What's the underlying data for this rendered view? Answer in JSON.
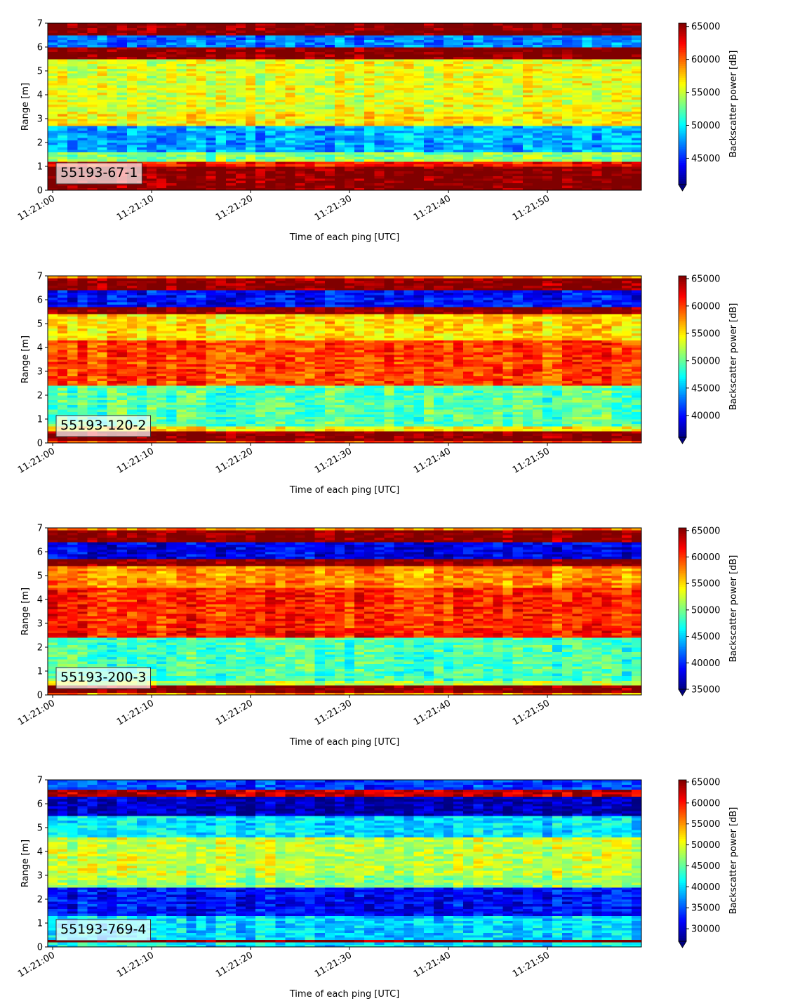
{
  "chart_data": [
    {
      "type": "heatmap",
      "panel_label": "55193-67-1",
      "xlabel": "Time of each ping [UTC]",
      "ylabel": "Range [m]",
      "x_ticks": [
        "11:21:00",
        "11:21:10",
        "11:21:20",
        "11:21:30",
        "11:21:40",
        "11:21:50"
      ],
      "x_range": [
        "11:20:59.5",
        "11:21:59.5"
      ],
      "ylim": [
        0,
        7
      ],
      "y_ticks": [
        0,
        1,
        2,
        3,
        4,
        5,
        6,
        7
      ],
      "colorbar": {
        "label": "Backscatter power [dB]",
        "colormap": "jet",
        "range": [
          41000,
          65500
        ],
        "ticks": [
          45000,
          50000,
          55000,
          60000,
          65000
        ],
        "extend": "min"
      },
      "range_profile": [
        {
          "range": [
            0.0,
            0.2
          ],
          "value": 65500
        },
        {
          "range": [
            0.2,
            1.0
          ],
          "value": 65500
        },
        {
          "range": [
            1.0,
            1.2
          ],
          "value": 62000
        },
        {
          "range": [
            1.2,
            1.6
          ],
          "value": 53500
        },
        {
          "range": [
            1.6,
            2.7
          ],
          "value": 48000
        },
        {
          "range": [
            2.7,
            3.3
          ],
          "value": 56500
        },
        {
          "range": [
            3.3,
            5.5
          ],
          "value": 55500
        },
        {
          "range": [
            5.5,
            6.0
          ],
          "value": 65500
        },
        {
          "range": [
            6.0,
            6.5
          ],
          "value": 47000
        },
        {
          "range": [
            6.5,
            7.0
          ],
          "value": 65500
        }
      ]
    },
    {
      "type": "heatmap",
      "panel_label": "55193-120-2",
      "xlabel": "Time of each ping [UTC]",
      "ylabel": "Range [m]",
      "x_ticks": [
        "11:21:00",
        "11:21:10",
        "11:21:20",
        "11:21:30",
        "11:21:40",
        "11:21:50"
      ],
      "x_range": [
        "11:20:59.5",
        "11:21:59.5"
      ],
      "ylim": [
        0,
        7
      ],
      "y_ticks": [
        0,
        1,
        2,
        3,
        4,
        5,
        6,
        7
      ],
      "colorbar": {
        "label": "Backscatter power [dB]",
        "colormap": "jet",
        "range": [
          36000,
          65500
        ],
        "ticks": [
          40000,
          45000,
          50000,
          55000,
          60000,
          65000
        ],
        "extend": "min"
      },
      "range_profile": [
        {
          "range": [
            0.0,
            0.1
          ],
          "value": 60000
        },
        {
          "range": [
            0.1,
            0.5
          ],
          "value": 65500
        },
        {
          "range": [
            0.5,
            0.7
          ],
          "value": 55000
        },
        {
          "range": [
            0.7,
            2.4
          ],
          "value": 49500
        },
        {
          "range": [
            2.4,
            2.8
          ],
          "value": 60000
        },
        {
          "range": [
            2.8,
            4.3
          ],
          "value": 60000
        },
        {
          "range": [
            4.3,
            5.4
          ],
          "value": 55500
        },
        {
          "range": [
            5.4,
            5.7
          ],
          "value": 65500
        },
        {
          "range": [
            5.7,
            6.4
          ],
          "value": 40000
        },
        {
          "range": [
            6.4,
            6.9
          ],
          "value": 65500
        },
        {
          "range": [
            6.9,
            7.0
          ],
          "value": 58000
        }
      ]
    },
    {
      "type": "heatmap",
      "panel_label": "55193-200-3",
      "xlabel": "Time of each ping [UTC]",
      "ylabel": "Range [m]",
      "x_ticks": [
        "11:21:00",
        "11:21:10",
        "11:21:20",
        "11:21:30",
        "11:21:40",
        "11:21:50"
      ],
      "x_range": [
        "11:20:59.5",
        "11:21:59.5"
      ],
      "ylim": [
        0,
        7
      ],
      "y_ticks": [
        0,
        1,
        2,
        3,
        4,
        5,
        6,
        7
      ],
      "colorbar": {
        "label": "Backscatter power [dB]",
        "colormap": "jet",
        "range": [
          35000,
          65500
        ],
        "ticks": [
          35000,
          40000,
          45000,
          50000,
          55000,
          60000,
          65000
        ],
        "extend": "min"
      },
      "range_profile": [
        {
          "range": [
            0.0,
            0.1
          ],
          "value": 57000
        },
        {
          "range": [
            0.1,
            0.4
          ],
          "value": 65500
        },
        {
          "range": [
            0.4,
            0.6
          ],
          "value": 52000
        },
        {
          "range": [
            0.6,
            2.4
          ],
          "value": 48500
        },
        {
          "range": [
            2.4,
            2.8
          ],
          "value": 61000
        },
        {
          "range": [
            2.8,
            4.5
          ],
          "value": 60500
        },
        {
          "range": [
            4.5,
            5.4
          ],
          "value": 57500
        },
        {
          "range": [
            5.4,
            5.7
          ],
          "value": 65500
        },
        {
          "range": [
            5.7,
            6.4
          ],
          "value": 38000
        },
        {
          "range": [
            6.4,
            6.9
          ],
          "value": 65500
        },
        {
          "range": [
            6.9,
            7.0
          ],
          "value": 58000
        }
      ]
    },
    {
      "type": "heatmap",
      "panel_label": "55193-769-4",
      "xlabel": "Time of each ping [UTC]",
      "ylabel": "Range [m]",
      "x_ticks": [
        "11:21:00",
        "11:21:10",
        "11:21:20",
        "11:21:30",
        "11:21:40",
        "11:21:50"
      ],
      "x_range": [
        "11:20:59.5",
        "11:21:59.5"
      ],
      "ylim": [
        0,
        7
      ],
      "y_ticks": [
        0,
        1,
        2,
        3,
        4,
        5,
        6,
        7
      ],
      "colorbar": {
        "label": "Backscatter power [dB]",
        "colormap": "jet",
        "range": [
          27000,
          65500
        ],
        "ticks": [
          30000,
          35000,
          40000,
          45000,
          50000,
          55000,
          60000,
          65000
        ],
        "extend": "min"
      },
      "range_profile": [
        {
          "range": [
            0.0,
            0.2
          ],
          "value": 41000
        },
        {
          "range": [
            0.2,
            0.3
          ],
          "value": 65500
        },
        {
          "range": [
            0.3,
            1.3
          ],
          "value": 40000
        },
        {
          "range": [
            1.3,
            2.5
          ],
          "value": 32000
        },
        {
          "range": [
            2.5,
            3.0
          ],
          "value": 47000
        },
        {
          "range": [
            3.0,
            4.6
          ],
          "value": 49000
        },
        {
          "range": [
            4.6,
            5.5
          ],
          "value": 40500
        },
        {
          "range": [
            5.5,
            6.3
          ],
          "value": 29000
        },
        {
          "range": [
            6.3,
            6.6
          ],
          "value": 63000
        },
        {
          "range": [
            6.6,
            7.0
          ],
          "value": 34000
        }
      ]
    }
  ]
}
